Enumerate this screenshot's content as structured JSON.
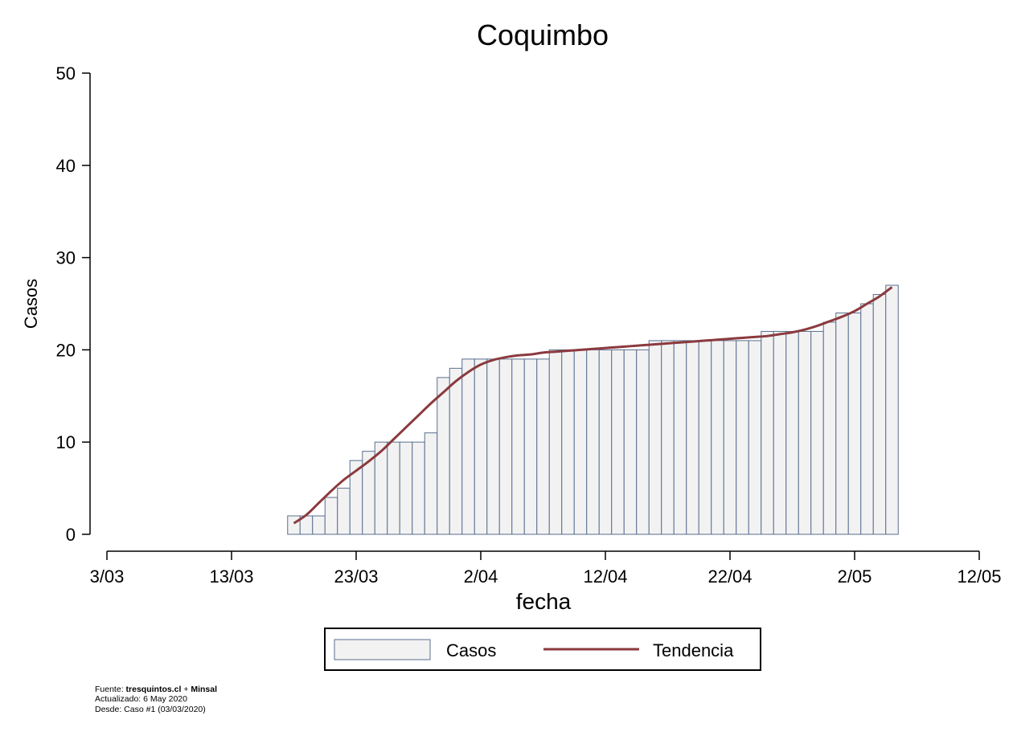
{
  "chart_data": {
    "type": "bar",
    "title": "Coquimbo",
    "xlabel": "fecha",
    "ylabel": "Casos",
    "ylim": [
      0,
      50
    ],
    "yticks": [
      "0",
      "10",
      "20",
      "30",
      "40",
      "50"
    ],
    "xticks": [
      "3/03",
      "13/03",
      "23/03",
      "2/04",
      "12/04",
      "22/04",
      "2/05",
      "12/05"
    ],
    "xlim": [
      "2020-03-03",
      "2020-05-12"
    ],
    "grid": false,
    "legend_position": "bottom",
    "x": [
      "2020-03-18",
      "2020-03-19",
      "2020-03-20",
      "2020-03-21",
      "2020-03-22",
      "2020-03-23",
      "2020-03-24",
      "2020-03-25",
      "2020-03-26",
      "2020-03-27",
      "2020-03-28",
      "2020-03-29",
      "2020-03-30",
      "2020-03-31",
      "2020-04-01",
      "2020-04-02",
      "2020-04-03",
      "2020-04-04",
      "2020-04-05",
      "2020-04-06",
      "2020-04-07",
      "2020-04-08",
      "2020-04-09",
      "2020-04-10",
      "2020-04-11",
      "2020-04-12",
      "2020-04-13",
      "2020-04-14",
      "2020-04-15",
      "2020-04-16",
      "2020-04-17",
      "2020-04-18",
      "2020-04-19",
      "2020-04-20",
      "2020-04-21",
      "2020-04-22",
      "2020-04-23",
      "2020-04-24",
      "2020-04-25",
      "2020-04-26",
      "2020-04-27",
      "2020-04-28",
      "2020-04-29",
      "2020-04-30",
      "2020-05-01",
      "2020-05-02",
      "2020-05-03",
      "2020-05-04",
      "2020-05-05"
    ],
    "series": [
      {
        "name": "Casos",
        "type": "bar",
        "color": "#f2f2f2",
        "edge_color": "#5a6f8f",
        "values": [
          2,
          2,
          2,
          4,
          5,
          8,
          9,
          10,
          10,
          10,
          10,
          11,
          17,
          18,
          19,
          19,
          19,
          19,
          19,
          19,
          19,
          20,
          20,
          20,
          20,
          20,
          20,
          20,
          20,
          21,
          21,
          21,
          21,
          21,
          21,
          21,
          21,
          21,
          22,
          22,
          22,
          22,
          22,
          23,
          24,
          24,
          25,
          26,
          27
        ]
      },
      {
        "name": "Tendencia",
        "type": "line",
        "color": "#8b3a3e",
        "values": [
          1.2,
          2.1,
          3.4,
          4.7,
          5.9,
          6.9,
          7.9,
          9.0,
          10.3,
          11.6,
          12.9,
          14.2,
          15.4,
          16.6,
          17.6,
          18.4,
          18.9,
          19.2,
          19.4,
          19.5,
          19.7,
          19.8,
          19.9,
          20.0,
          20.1,
          20.2,
          20.3,
          20.4,
          20.5,
          20.6,
          20.7,
          20.8,
          20.9,
          21.0,
          21.1,
          21.2,
          21.3,
          21.4,
          21.5,
          21.7,
          21.9,
          22.2,
          22.6,
          23.1,
          23.6,
          24.2,
          25.0,
          25.8,
          26.8
        ]
      }
    ]
  },
  "footer": {
    "fuente_label": "Fuente: ",
    "fuente_source": "tresquintos.cl",
    "fuente_plus": " + ",
    "fuente_minsal": "Minsal",
    "actualizado": "Actualizado: 6 May 2020",
    "desde": "Desde: Caso #1   (03/03/2020)"
  }
}
